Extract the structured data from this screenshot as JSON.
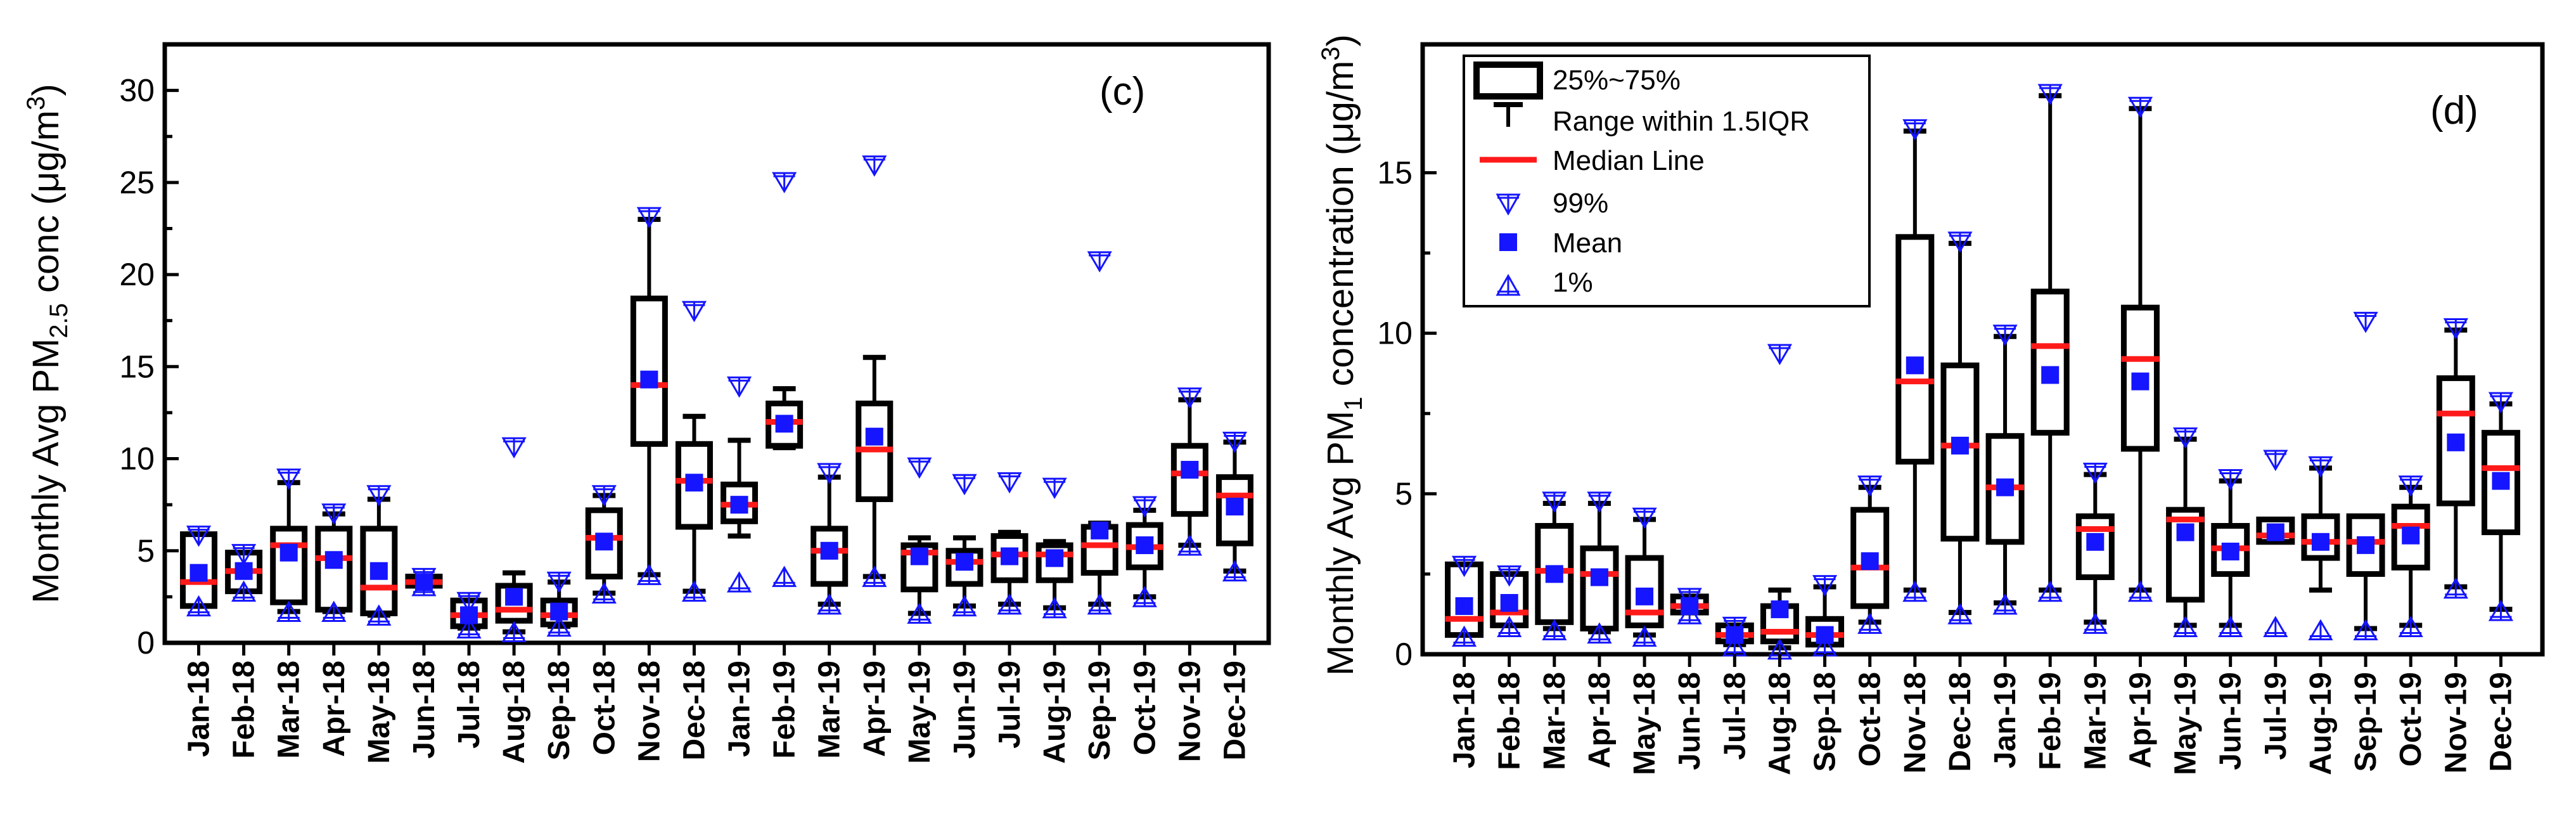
{
  "chart_data": [
    {
      "type": "box",
      "panel_label": "(c)",
      "ylabel": {
        "prefix": "Monthly Avg PM",
        "sub": "2.5",
        "mid": " conc (μg/m",
        "sup": "3",
        "suffix": ")"
      },
      "ylim": [
        0,
        32.5
      ],
      "yticks": [
        0,
        5,
        10,
        15,
        20,
        25,
        30
      ],
      "categories": [
        "Jan-18",
        "Feb-18",
        "Mar-18",
        "Apr-18",
        "May-18",
        "Jun-18",
        "Jul-18",
        "Aug-18",
        "Sep-18",
        "Oct-18",
        "Nov-18",
        "Dec-18",
        "Jan-19",
        "Feb-19",
        "Mar-19",
        "Apr-19",
        "May-19",
        "Jun-19",
        "Jul-19",
        "Aug-19",
        "Sep-19",
        "Oct-19",
        "Nov-19",
        "Dec-19"
      ],
      "q1": [
        2.0,
        2.8,
        2.2,
        1.8,
        1.6,
        3.1,
        0.9,
        1.2,
        1.0,
        3.6,
        10.8,
        6.3,
        6.6,
        10.7,
        3.2,
        7.8,
        2.9,
        3.2,
        3.4,
        3.4,
        3.8,
        4.1,
        7.0,
        5.4
      ],
      "q3": [
        5.9,
        4.9,
        6.2,
        6.2,
        6.2,
        3.6,
        2.3,
        3.1,
        2.3,
        7.2,
        18.7,
        10.8,
        8.6,
        13.0,
        6.2,
        13.0,
        5.3,
        5.0,
        5.8,
        5.3,
        6.3,
        6.4,
        10.7,
        9.0
      ],
      "median": [
        3.3,
        3.9,
        5.3,
        4.6,
        3.0,
        3.3,
        1.5,
        1.8,
        1.5,
        5.7,
        14.0,
        8.8,
        7.5,
        12.0,
        5.0,
        10.5,
        4.9,
        4.4,
        4.8,
        4.8,
        5.3,
        5.2,
        9.2,
        8.0
      ],
      "mean": [
        3.8,
        3.9,
        4.9,
        4.5,
        3.9,
        3.3,
        1.5,
        2.5,
        1.7,
        5.5,
        14.3,
        8.7,
        7.5,
        11.9,
        5.0,
        11.2,
        4.7,
        4.4,
        4.7,
        4.6,
        6.1,
        5.3,
        9.4,
        7.4
      ],
      "whisker_low": [
        2.0,
        2.8,
        1.7,
        1.7,
        1.5,
        3.1,
        0.8,
        0.6,
        0.9,
        2.7,
        3.7,
        2.8,
        5.8,
        10.6,
        2.1,
        3.6,
        1.6,
        2.0,
        2.1,
        1.9,
        2.1,
        2.5,
        5.3,
        3.9
      ],
      "whisker_high": [
        5.9,
        4.9,
        8.7,
        7.0,
        7.8,
        3.6,
        2.3,
        3.8,
        3.3,
        8.0,
        23.0,
        12.3,
        11.0,
        13.8,
        9.0,
        15.5,
        5.7,
        5.7,
        6.0,
        5.5,
        6.5,
        7.2,
        13.2,
        10.9
      ],
      "p99": [
        5.9,
        4.9,
        9.0,
        7.1,
        8.1,
        3.6,
        2.3,
        10.7,
        3.4,
        8.1,
        23.2,
        18.1,
        14.0,
        25.1,
        9.3,
        26.0,
        9.6,
        8.7,
        8.8,
        8.5,
        20.8,
        7.5,
        13.4,
        11.0
      ],
      "p1": [
        1.9,
        2.7,
        1.6,
        1.6,
        1.4,
        3.0,
        0.7,
        0.5,
        0.8,
        2.6,
        3.6,
        2.7,
        3.2,
        3.5,
        2.0,
        3.5,
        1.5,
        1.9,
        2.0,
        1.8,
        2.0,
        2.4,
        5.2,
        3.8
      ]
    },
    {
      "type": "box",
      "panel_label": "(d)",
      "ylabel": {
        "prefix": "Monthly Avg PM",
        "sub": "1",
        "mid": " concentration (μg/m",
        "sup": "3",
        "suffix": ")"
      },
      "ylim": [
        0,
        19
      ],
      "yticks": [
        0,
        5,
        10,
        15
      ],
      "categories": [
        "Jan-18",
        "Feb-18",
        "Mar-18",
        "Apr-18",
        "May-18",
        "Jun-18",
        "Jul-18",
        "Aug-18",
        "Sep-18",
        "Oct-18",
        "Nov-18",
        "Dec-18",
        "Jan-19",
        "Feb-19",
        "Mar-19",
        "Apr-19",
        "May-19",
        "Jun-19",
        "Jul-19",
        "Aug-19",
        "Sep-19",
        "Oct-19",
        "Nov-19",
        "Dec-19"
      ],
      "q1": [
        0.6,
        0.9,
        1.0,
        0.8,
        0.9,
        1.3,
        0.4,
        0.4,
        0.3,
        1.5,
        6.0,
        3.6,
        3.5,
        6.9,
        2.4,
        6.4,
        1.7,
        2.5,
        3.5,
        3.0,
        2.5,
        2.7,
        4.7,
        3.8
      ],
      "q3": [
        2.8,
        2.5,
        4.0,
        3.3,
        3.0,
        1.8,
        0.9,
        1.5,
        1.1,
        4.5,
        13.0,
        9.0,
        6.8,
        11.3,
        4.3,
        10.8,
        4.5,
        4.0,
        4.2,
        4.3,
        4.3,
        4.6,
        8.6,
        6.9
      ],
      "median": [
        1.1,
        1.3,
        2.6,
        2.5,
        1.3,
        1.5,
        0.6,
        0.7,
        0.6,
        2.7,
        8.5,
        6.5,
        5.2,
        9.6,
        3.9,
        9.2,
        4.2,
        3.3,
        3.7,
        3.5,
        3.5,
        4.0,
        7.5,
        5.8
      ],
      "mean": [
        1.5,
        1.6,
        2.5,
        2.4,
        1.8,
        1.5,
        0.6,
        1.4,
        0.6,
        2.9,
        9.0,
        6.5,
        5.2,
        8.7,
        3.5,
        8.5,
        3.8,
        3.2,
        3.8,
        3.5,
        3.4,
        3.7,
        6.6,
        5.4
      ],
      "whisker_low": [
        0.6,
        0.9,
        0.8,
        0.7,
        0.6,
        1.3,
        0.3,
        0.2,
        0.3,
        1.0,
        2.0,
        1.3,
        1.6,
        2.0,
        1.0,
        2.0,
        0.9,
        0.9,
        3.5,
        2.0,
        0.8,
        0.9,
        2.1,
        1.4
      ],
      "whisker_high": [
        2.8,
        2.5,
        4.7,
        4.7,
        4.2,
        1.8,
        0.9,
        2.0,
        2.1,
        5.2,
        16.3,
        12.8,
        9.9,
        17.4,
        5.6,
        17.0,
        6.7,
        5.4,
        4.2,
        5.8,
        4.3,
        5.2,
        10.1,
        7.8
      ],
      "p99": [
        2.8,
        2.5,
        4.8,
        4.8,
        4.3,
        1.8,
        0.9,
        9.4,
        2.2,
        5.3,
        16.4,
        12.9,
        10.0,
        17.5,
        5.7,
        17.1,
        6.8,
        5.5,
        6.1,
        5.9,
        10.4,
        5.3,
        10.2,
        7.9
      ],
      "p1": [
        0.5,
        0.8,
        0.7,
        0.6,
        0.5,
        1.2,
        0.2,
        0.1,
        0.2,
        0.9,
        1.9,
        1.2,
        1.5,
        1.9,
        0.9,
        1.9,
        0.8,
        0.8,
        0.8,
        0.7,
        0.7,
        0.8,
        2.0,
        1.3
      ]
    }
  ],
  "legend": {
    "box": "25%~75%",
    "range": "Range within 1.5IQR",
    "median": "Median Line",
    "p99": "99%",
    "mean": "Mean",
    "p1": "1%"
  },
  "colors": {
    "median": "#ff1a1a",
    "mean": "#1515ff",
    "percentile_markers": "#1515ff",
    "box": "#000000"
  }
}
